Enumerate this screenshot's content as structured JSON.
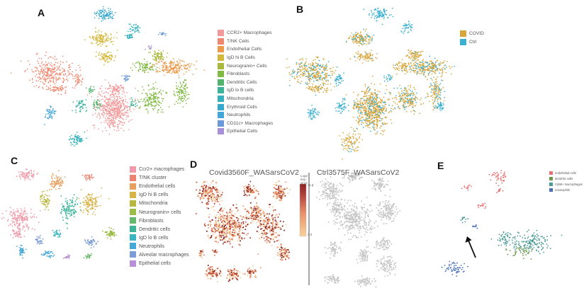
{
  "figure": {
    "panels": [
      {
        "letter": "A",
        "legend": [
          "CCR2+ Macrophages",
          "T/NK Cells",
          "Endothelial Cells",
          "IgD hi B Cells",
          "Neurogranin+ Cells",
          "Fibroblasts",
          "Dendritic Cells",
          "IgD lo B cells",
          "Mitochondria",
          "Erythroid Cells",
          "Neutrophils",
          "CD11c+ Macrophages",
          "Epithelial Cells"
        ]
      },
      {
        "letter": "B",
        "legend": [
          "COVID",
          "Ctrl"
        ]
      },
      {
        "letter": "C",
        "legend": [
          "Ccr2+ macrophages",
          "T/NK cluster",
          "Endothelial cells",
          "IgD hi B cells",
          "Mitochondria",
          "Neurogranin+ cells",
          "Fibroblasts",
          "Dendritic cells",
          "IgD lo B cells",
          "Neutrophils",
          "Alveolar macrophages",
          "Epithelial cells"
        ]
      },
      {
        "letter": "D",
        "left_title": "Covid3560F_WASarsCoV2",
        "right_title": "Ctrl3575F_WASarsCoV2",
        "colorbar_title": "Log2 Exp virus",
        "colorbar_max": "11.0",
        "colorbar_min": "0.0"
      },
      {
        "letter": "E",
        "legend": [
          "endothelial cells",
          "dendritic cells",
          "Cd68+ macrophages",
          "eosinophils"
        ]
      }
    ]
  },
  "colors": {
    "A": [
      "#f29a9a",
      "#f08870",
      "#ec9a4a",
      "#d4b83c",
      "#a8b83a",
      "#7fba42",
      "#52b36c",
      "#3ab39a",
      "#36b0bd",
      "#36a8cc",
      "#44a5d8",
      "#6a98d8",
      "#a890d8"
    ],
    "B": [
      "#d8a53c",
      "#3bb0d0"
    ],
    "C": [
      "#f09aaa",
      "#ee8270",
      "#e8a060",
      "#d8b448",
      "#b8b840",
      "#9cbc44",
      "#66b86c",
      "#3cb49a",
      "#3ab4c0",
      "#44a8d8",
      "#7c9cd8",
      "#b890d8"
    ],
    "E": [
      "#e87070",
      "#6a9a4a",
      "#4a9a96",
      "#4a70b8"
    ],
    "D_cmap": [
      "#f6cd95",
      "#e88f6a",
      "#a53a36",
      "#7a1c1c"
    ],
    "gray": "#c8c8c8"
  }
}
